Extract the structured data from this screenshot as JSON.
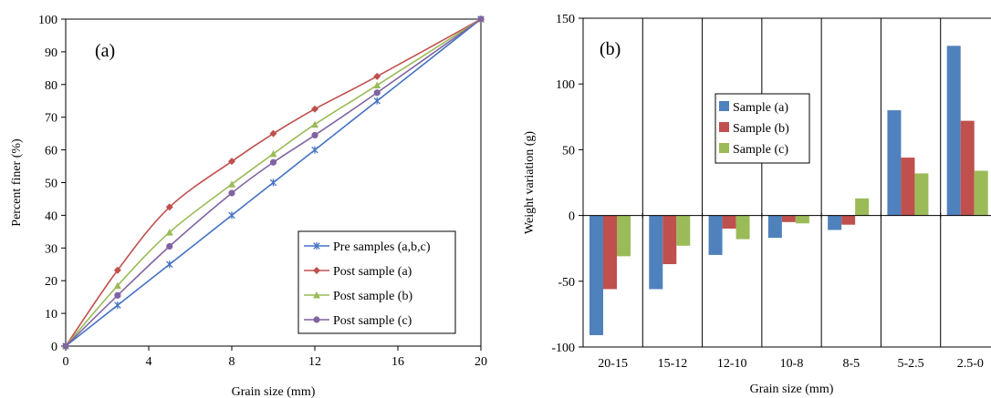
{
  "chart_data": [
    {
      "type": "line",
      "panel_label": "(a)",
      "xlabel": "Grain size (mm)",
      "ylabel": "Percent finer (%)",
      "xlim": [
        0,
        20
      ],
      "ylim": [
        0,
        100
      ],
      "xticks": [
        0,
        4,
        8,
        12,
        16,
        20
      ],
      "yticks": [
        0,
        10,
        20,
        30,
        40,
        50,
        60,
        70,
        80,
        90,
        100
      ],
      "grid": false,
      "legend_position": "bottom-right",
      "series": [
        {
          "name": "Pre samples (a,b,c)",
          "color": "#4472c4",
          "marker": "x-star",
          "x": [
            0,
            2.5,
            5,
            8,
            10,
            12,
            15,
            20
          ],
          "y": [
            0,
            12.5,
            25,
            40,
            50,
            60,
            75,
            100
          ]
        },
        {
          "name": "Post sample (a)",
          "color": "#c0504d",
          "marker": "diamond",
          "x": [
            0,
            2.5,
            5,
            8,
            10,
            12,
            15,
            20
          ],
          "y": [
            0,
            23.2,
            42.5,
            56.5,
            65,
            72.5,
            82.5,
            100
          ]
        },
        {
          "name": "Post sample (b)",
          "color": "#9bbb59",
          "marker": "triangle",
          "x": [
            0,
            2.5,
            5,
            8,
            10,
            12,
            15,
            20
          ],
          "y": [
            0,
            18.5,
            34.8,
            49.5,
            58.8,
            67.8,
            79.8,
            100
          ]
        },
        {
          "name": "Post sample (c)",
          "color": "#8064a2",
          "marker": "circle",
          "x": [
            0,
            2.5,
            5,
            8,
            10,
            12,
            15,
            20
          ],
          "y": [
            0,
            15.5,
            30.5,
            46.8,
            56.2,
            64.5,
            77.5,
            100
          ]
        }
      ]
    },
    {
      "type": "bar",
      "panel_label": "(b)",
      "xlabel": "Grain size (mm)",
      "ylabel": "Weight variation (g)",
      "ylim": [
        -100,
        150
      ],
      "yticks": [
        -100,
        -50,
        0,
        50,
        100,
        150
      ],
      "categories": [
        "20-15",
        "15-12",
        "12-10",
        "10-8",
        "8-5",
        "5-2.5",
        "2.5-0"
      ],
      "grid": "vertical category separators",
      "legend_position": "upper-middle",
      "series": [
        {
          "name": "Sample (a)",
          "color": "#4f81bd",
          "values": [
            -91,
            -56,
            -30,
            -17,
            -11,
            80,
            129
          ]
        },
        {
          "name": "Sample (b)",
          "color": "#c0504d",
          "values": [
            -56,
            -37,
            -10,
            -5,
            -7,
            44,
            72
          ]
        },
        {
          "name": "Sample (c)",
          "color": "#9bbb59",
          "values": [
            -31,
            -23,
            -18,
            -6,
            13,
            32,
            34
          ]
        }
      ]
    }
  ]
}
